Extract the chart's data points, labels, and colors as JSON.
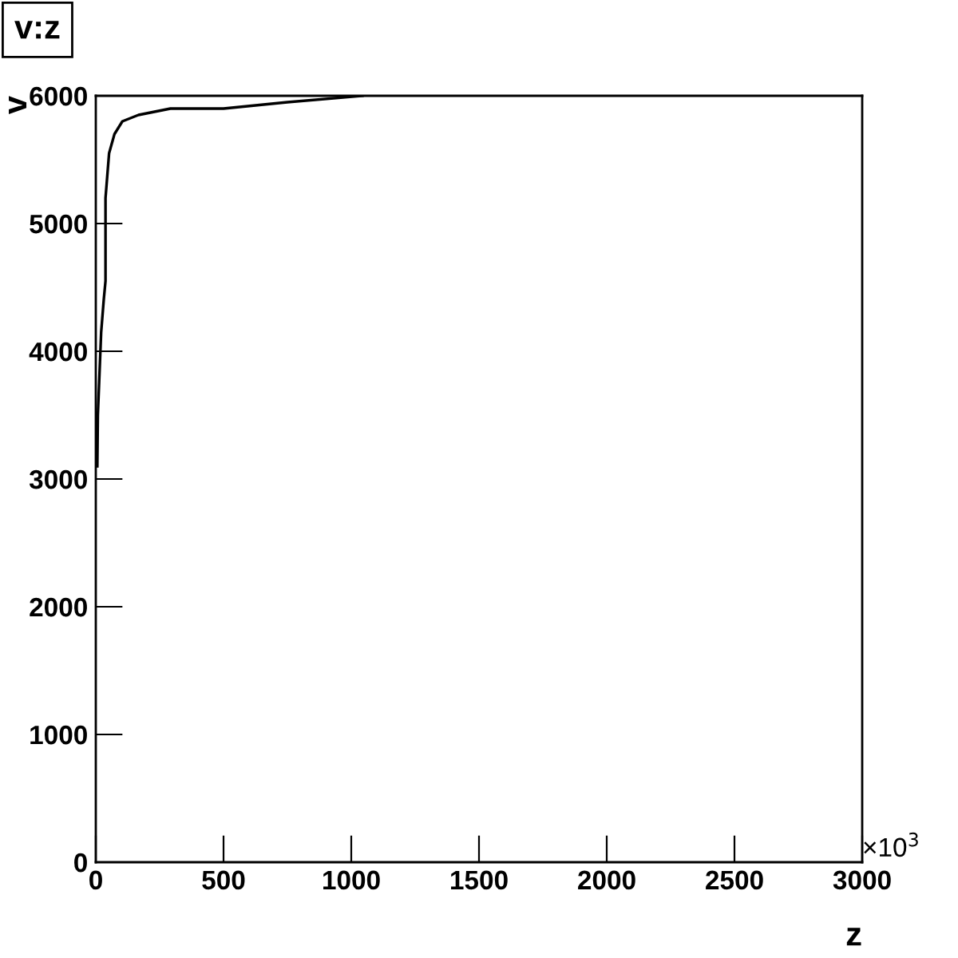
{
  "chart_data": {
    "type": "line",
    "title": "v:z",
    "xlabel": "z",
    "ylabel": "v",
    "annotations": [
      "×10$^{3}$"
    ],
    "series": [
      {
        "color": "#000000",
        "x": [
          6,
          8,
          15,
          21,
          31,
          38,
          38,
          46,
          52,
          73,
          104,
          167,
          292,
          500,
          750,
          1044
        ],
        "values": [
          3100,
          3500,
          3850,
          4150,
          4400,
          4550,
          5200,
          5400,
          5550,
          5700,
          5800,
          5850,
          5900,
          5900,
          5950,
          6000
        ]
      }
    ],
    "xlim": [
      0,
      3000
    ],
    "ylim": [
      0,
      6000
    ],
    "xticks": [
      0,
      500,
      1000,
      1500,
      2000,
      2500,
      3000
    ],
    "yticks": [
      0,
      1000,
      2000,
      3000,
      4000,
      5000,
      6000
    ],
    "grid": false,
    "marker": "none",
    "line_style": "solid"
  }
}
